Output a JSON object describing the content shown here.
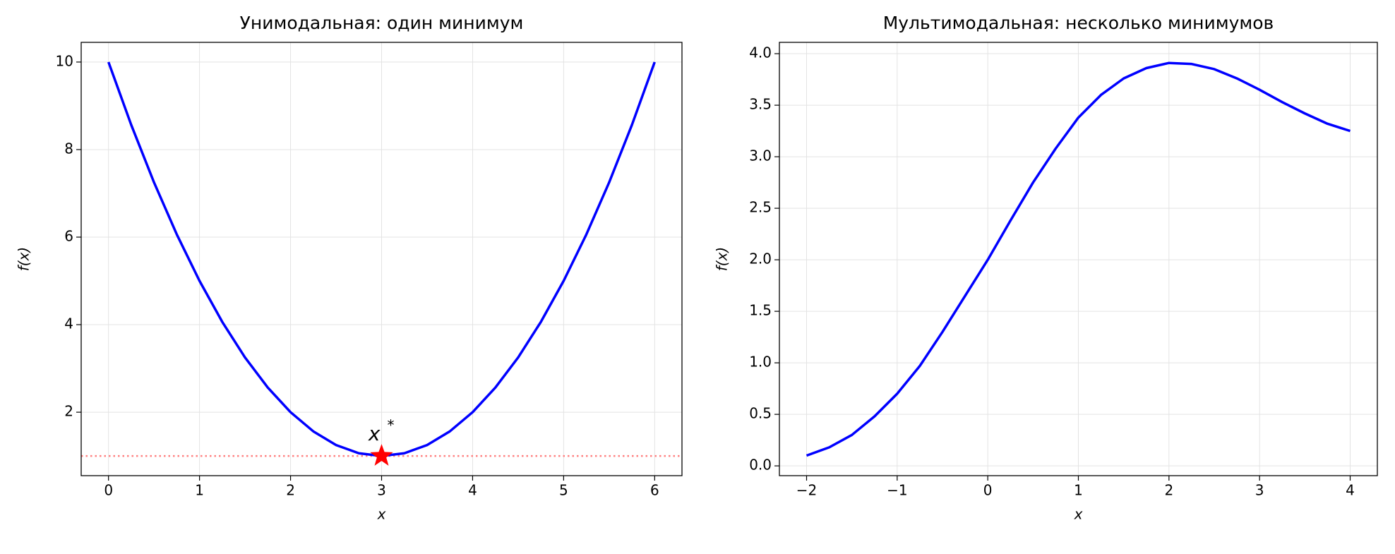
{
  "chart_data": [
    {
      "type": "line",
      "title": "Унимодальная: один минимум",
      "x_label": "x",
      "y_label": "f(x)",
      "x": [
        0,
        0.25,
        0.5,
        0.75,
        1,
        1.25,
        1.5,
        1.75,
        2,
        2.25,
        2.5,
        2.75,
        3,
        3.25,
        3.5,
        3.75,
        4,
        4.25,
        4.5,
        4.75,
        5,
        5.25,
        5.5,
        5.75,
        6
      ],
      "series": [
        {
          "color": "#0000ff",
          "values": [
            10,
            8.5625,
            7.25,
            6.0625,
            5,
            4.0625,
            3.25,
            2.5625,
            2,
            1.5625,
            1.25,
            1.0625,
            1,
            1.0625,
            1.25,
            1.5625,
            2,
            2.5625,
            3.25,
            4.0625,
            5,
            6.0625,
            7.25,
            8.5625,
            10
          ]
        }
      ],
      "hline": {
        "value": 1,
        "color": "#ff8080"
      },
      "marker": {
        "x": 3,
        "y": 1,
        "color": "#ff0000",
        "text": "x",
        "sup": "*"
      },
      "xlim": [
        -0.3,
        6.3
      ],
      "xticks": [
        0,
        1,
        2,
        3,
        4,
        5,
        6
      ],
      "ylim": [
        0.55,
        10.45
      ],
      "yticks": [
        2,
        4,
        6,
        8,
        10
      ],
      "grid": true
    },
    {
      "type": "line",
      "title": "Мультимодальная: несколько минимумов",
      "x_label": "x",
      "y_label": "f(x)",
      "x": [
        -2,
        -1.75,
        -1.5,
        -1.25,
        -1,
        -0.75,
        -0.5,
        -0.25,
        0,
        0.25,
        0.5,
        0.75,
        1,
        1.25,
        1.5,
        1.75,
        2,
        2.25,
        2.5,
        2.75,
        3,
        3.25,
        3.5,
        3.75,
        4
      ],
      "series": [
        {
          "color": "#0000ff",
          "values": [
            0.1,
            0.18,
            0.3,
            0.48,
            0.7,
            0.97,
            1.3,
            1.65,
            2.0,
            2.38,
            2.75,
            3.08,
            3.38,
            3.6,
            3.76,
            3.86,
            3.91,
            3.9,
            3.85,
            3.76,
            3.65,
            3.53,
            3.42,
            3.32,
            3.25
          ]
        }
      ],
      "xlim": [
        -2.3,
        4.3
      ],
      "xticks": [
        {
          "value": -2,
          "label": "−2"
        },
        {
          "value": -1,
          "label": "−1"
        },
        0,
        1,
        2,
        3,
        4
      ],
      "ylim": [
        -0.095,
        4.11
      ],
      "yticks": [
        {
          "value": 0,
          "label": "0.0"
        },
        0.5,
        {
          "value": 1,
          "label": "1.0"
        },
        1.5,
        {
          "value": 2,
          "label": "2.0"
        },
        2.5,
        {
          "value": 3,
          "label": "3.0"
        },
        3.5,
        {
          "value": 4,
          "label": "4.0"
        }
      ],
      "grid": true
    }
  ]
}
